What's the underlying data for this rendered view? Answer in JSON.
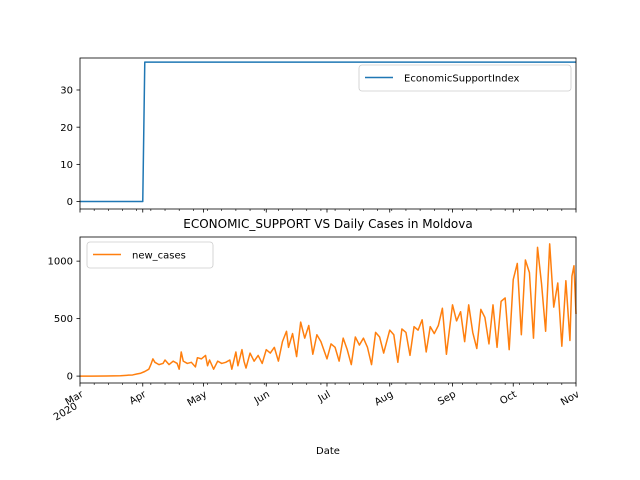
{
  "chart_data": [
    {
      "type": "line",
      "title": "",
      "xlabel": "",
      "ylabel": "",
      "x_range": [
        "2020-03-01",
        "2020-11-01"
      ],
      "ylim": [
        -2,
        38.6
      ],
      "yticks": [
        0,
        10,
        20,
        30
      ],
      "legend": "upper-right",
      "grid": false,
      "series": [
        {
          "name": "EconomicSupportIndex",
          "color": "#1f77b4",
          "points": [
            [
              "2020-03-01",
              0
            ],
            [
              "2020-04-01",
              0
            ],
            [
              "2020-04-02",
              37.5
            ],
            [
              "2020-11-01",
              37.5
            ]
          ]
        }
      ]
    },
    {
      "type": "line",
      "title": "ECONOMIC_SUPPORT VS Daily Cases in Moldova",
      "xlabel": "Date",
      "ylabel": "",
      "x_range": [
        "2020-03-01",
        "2020-11-01"
      ],
      "xticks": [
        {
          "date": "2020-03-01",
          "label": "Mar",
          "year": "2020"
        },
        {
          "date": "2020-04-01",
          "label": "Apr"
        },
        {
          "date": "2020-05-01",
          "label": "May"
        },
        {
          "date": "2020-06-01",
          "label": "Jun"
        },
        {
          "date": "2020-07-01",
          "label": "Jul"
        },
        {
          "date": "2020-08-01",
          "label": "Aug"
        },
        {
          "date": "2020-09-01",
          "label": "Sep"
        },
        {
          "date": "2020-10-01",
          "label": "Oct"
        },
        {
          "date": "2020-11-01",
          "label": "Nov"
        }
      ],
      "ylim": [
        -60,
        1210
      ],
      "yticks": [
        0,
        500,
        1000
      ],
      "legend": "upper-left",
      "grid": false,
      "series": [
        {
          "name": "new_cases",
          "color": "#ff7f0e",
          "points": [
            [
              "2020-03-01",
              0
            ],
            [
              "2020-03-07",
              0
            ],
            [
              "2020-03-14",
              1
            ],
            [
              "2020-03-21",
              3
            ],
            [
              "2020-03-25",
              8
            ],
            [
              "2020-03-27",
              10
            ],
            [
              "2020-03-29",
              18
            ],
            [
              "2020-03-31",
              25
            ],
            [
              "2020-04-02",
              40
            ],
            [
              "2020-04-04",
              60
            ],
            [
              "2020-04-05",
              100
            ],
            [
              "2020-04-06",
              150
            ],
            [
              "2020-04-07",
              120
            ],
            [
              "2020-04-09",
              100
            ],
            [
              "2020-04-11",
              110
            ],
            [
              "2020-04-12",
              140
            ],
            [
              "2020-04-14",
              100
            ],
            [
              "2020-04-16",
              130
            ],
            [
              "2020-04-18",
              110
            ],
            [
              "2020-04-19",
              60
            ],
            [
              "2020-04-20",
              210
            ],
            [
              "2020-04-21",
              130
            ],
            [
              "2020-04-23",
              110
            ],
            [
              "2020-04-25",
              120
            ],
            [
              "2020-04-27",
              80
            ],
            [
              "2020-04-28",
              160
            ],
            [
              "2020-04-30",
              150
            ],
            [
              "2020-05-02",
              180
            ],
            [
              "2020-05-03",
              90
            ],
            [
              "2020-05-04",
              140
            ],
            [
              "2020-05-06",
              60
            ],
            [
              "2020-05-08",
              130
            ],
            [
              "2020-05-10",
              110
            ],
            [
              "2020-05-12",
              120
            ],
            [
              "2020-05-14",
              140
            ],
            [
              "2020-05-15",
              60
            ],
            [
              "2020-05-17",
              210
            ],
            [
              "2020-05-18",
              90
            ],
            [
              "2020-05-20",
              230
            ],
            [
              "2020-05-21",
              130
            ],
            [
              "2020-05-22",
              70
            ],
            [
              "2020-05-24",
              200
            ],
            [
              "2020-05-26",
              130
            ],
            [
              "2020-05-28",
              180
            ],
            [
              "2020-05-30",
              110
            ],
            [
              "2020-06-01",
              230
            ],
            [
              "2020-06-03",
              200
            ],
            [
              "2020-06-05",
              250
            ],
            [
              "2020-06-07",
              130
            ],
            [
              "2020-06-09",
              300
            ],
            [
              "2020-06-11",
              390
            ],
            [
              "2020-06-12",
              250
            ],
            [
              "2020-06-14",
              370
            ],
            [
              "2020-06-16",
              170
            ],
            [
              "2020-06-18",
              470
            ],
            [
              "2020-06-20",
              330
            ],
            [
              "2020-06-22",
              440
            ],
            [
              "2020-06-24",
              190
            ],
            [
              "2020-06-26",
              360
            ],
            [
              "2020-06-28",
              300
            ],
            [
              "2020-07-01",
              150
            ],
            [
              "2020-07-03",
              280
            ],
            [
              "2020-07-05",
              250
            ],
            [
              "2020-07-07",
              130
            ],
            [
              "2020-07-09",
              330
            ],
            [
              "2020-07-11",
              230
            ],
            [
              "2020-07-13",
              100
            ],
            [
              "2020-07-15",
              340
            ],
            [
              "2020-07-17",
              270
            ],
            [
              "2020-07-19",
              330
            ],
            [
              "2020-07-21",
              250
            ],
            [
              "2020-07-23",
              100
            ],
            [
              "2020-07-25",
              380
            ],
            [
              "2020-07-27",
              340
            ],
            [
              "2020-07-29",
              200
            ],
            [
              "2020-08-01",
              400
            ],
            [
              "2020-08-03",
              360
            ],
            [
              "2020-08-05",
              120
            ],
            [
              "2020-08-07",
              410
            ],
            [
              "2020-08-09",
              380
            ],
            [
              "2020-08-11",
              180
            ],
            [
              "2020-08-13",
              430
            ],
            [
              "2020-08-15",
              400
            ],
            [
              "2020-08-17",
              490
            ],
            [
              "2020-08-19",
              210
            ],
            [
              "2020-08-21",
              430
            ],
            [
              "2020-08-23",
              370
            ],
            [
              "2020-08-25",
              440
            ],
            [
              "2020-08-27",
              590
            ],
            [
              "2020-08-29",
              190
            ],
            [
              "2020-09-01",
              620
            ],
            [
              "2020-09-03",
              480
            ],
            [
              "2020-09-05",
              560
            ],
            [
              "2020-09-07",
              300
            ],
            [
              "2020-09-09",
              620
            ],
            [
              "2020-09-11",
              380
            ],
            [
              "2020-09-13",
              240
            ],
            [
              "2020-09-15",
              580
            ],
            [
              "2020-09-17",
              510
            ],
            [
              "2020-09-19",
              280
            ],
            [
              "2020-09-21",
              620
            ],
            [
              "2020-09-23",
              250
            ],
            [
              "2020-09-25",
              650
            ],
            [
              "2020-09-27",
              680
            ],
            [
              "2020-09-29",
              230
            ],
            [
              "2020-10-01",
              840
            ],
            [
              "2020-10-03",
              980
            ],
            [
              "2020-10-05",
              360
            ],
            [
              "2020-10-07",
              1010
            ],
            [
              "2020-10-09",
              900
            ],
            [
              "2020-10-11",
              330
            ],
            [
              "2020-10-13",
              1120
            ],
            [
              "2020-10-15",
              800
            ],
            [
              "2020-10-17",
              390
            ],
            [
              "2020-10-19",
              1150
            ],
            [
              "2020-10-21",
              600
            ],
            [
              "2020-10-23",
              810
            ],
            [
              "2020-10-25",
              260
            ],
            [
              "2020-10-27",
              830
            ],
            [
              "2020-10-29",
              310
            ],
            [
              "2020-10-30",
              870
            ],
            [
              "2020-10-31",
              960
            ],
            [
              "2020-11-01",
              540
            ]
          ]
        }
      ]
    }
  ]
}
